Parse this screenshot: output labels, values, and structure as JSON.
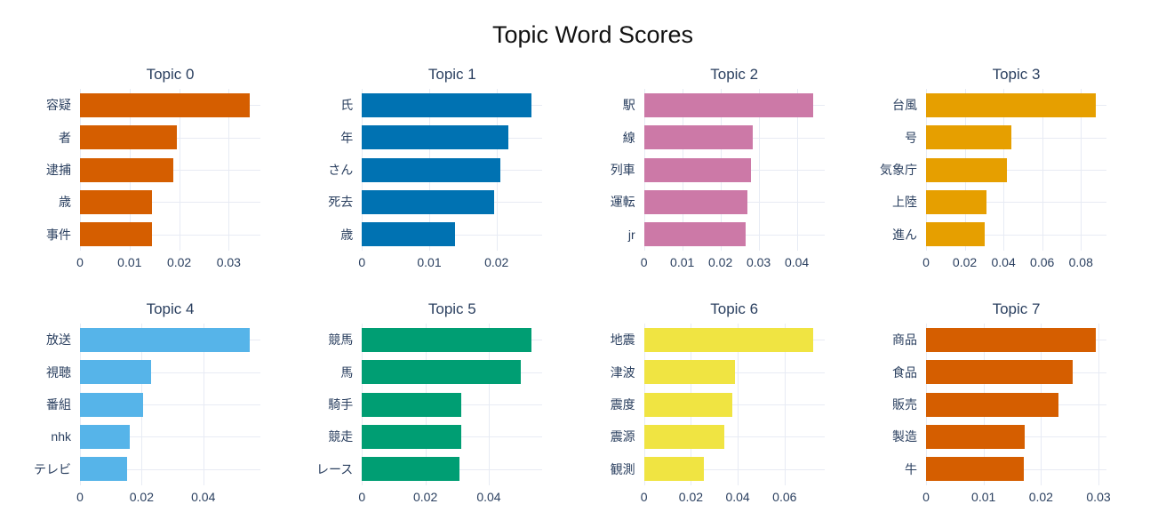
{
  "page": {
    "title": "Topic Word Scores"
  },
  "chart_data": {
    "type": "bar",
    "orientation": "horizontal",
    "title": "Topic Word Scores",
    "layout_hint": "2 rows x 4 columns of small-multiple horizontal bar charts, white background, light gridlines, no legend",
    "styles": {
      "background": "#ffffff",
      "grid_color": "#e7ebf4",
      "axis_text_color": "#2a3f5f",
      "subplot_title_color": "#2a3f5f",
      "main_title_color": "#111111",
      "range_pad_factor": 1.064
    },
    "subplots": [
      {
        "title": "Topic 0",
        "color": "#D55E00",
        "categories": [
          "容疑",
          "者",
          "逮捕",
          "歳",
          "事件"
        ],
        "values": [
          0.0342,
          0.0195,
          0.0189,
          0.0146,
          0.0145
        ],
        "xticks": [
          0,
          0.01,
          0.02,
          0.03
        ]
      },
      {
        "title": "Topic 1",
        "color": "#0072B2",
        "categories": [
          "氏",
          "年",
          "さん",
          "死去",
          "歳"
        ],
        "values": [
          0.0252,
          0.0217,
          0.0205,
          0.0196,
          0.0138
        ],
        "xticks": [
          0,
          0.01,
          0.02
        ]
      },
      {
        "title": "Topic 2",
        "color": "#CC79A7",
        "categories": [
          "駅",
          "線",
          "列車",
          "運転",
          "jr"
        ],
        "values": [
          0.0444,
          0.0284,
          0.0281,
          0.0271,
          0.0265
        ],
        "xticks": [
          0,
          0.01,
          0.02,
          0.03,
          0.04
        ]
      },
      {
        "title": "Topic 3",
        "color": "#E69F00",
        "categories": [
          "台風",
          "号",
          "気象庁",
          "上陸",
          "進ん"
        ],
        "values": [
          0.0876,
          0.0442,
          0.0418,
          0.031,
          0.0302
        ],
        "xticks": [
          0,
          0.02,
          0.04,
          0.06,
          0.08
        ]
      },
      {
        "title": "Topic 4",
        "color": "#56B4E9",
        "categories": [
          "放送",
          "視聴",
          "番組",
          "nhk",
          "テレビ"
        ],
        "values": [
          0.055,
          0.023,
          0.0206,
          0.0161,
          0.0154
        ],
        "xticks": [
          0,
          0.02,
          0.04
        ]
      },
      {
        "title": "Topic 5",
        "color": "#009E73",
        "categories": [
          "競馬",
          "馬",
          "騎手",
          "競走",
          "レース"
        ],
        "values": [
          0.0535,
          0.0502,
          0.0314,
          0.0312,
          0.0308
        ],
        "xticks": [
          0,
          0.02,
          0.04
        ]
      },
      {
        "title": "Topic 6",
        "color": "#F0E442",
        "categories": [
          "地震",
          "津波",
          "震度",
          "震源",
          "観測"
        ],
        "values": [
          0.0724,
          0.0387,
          0.0377,
          0.0342,
          0.0256
        ],
        "xticks": [
          0,
          0.02,
          0.04,
          0.06
        ]
      },
      {
        "title": "Topic 7",
        "color": "#D55E00",
        "categories": [
          "商品",
          "食品",
          "販売",
          "製造",
          "牛"
        ],
        "values": [
          0.0295,
          0.0255,
          0.0231,
          0.0172,
          0.017
        ],
        "xticks": [
          0,
          0.01,
          0.02,
          0.03
        ]
      }
    ]
  }
}
